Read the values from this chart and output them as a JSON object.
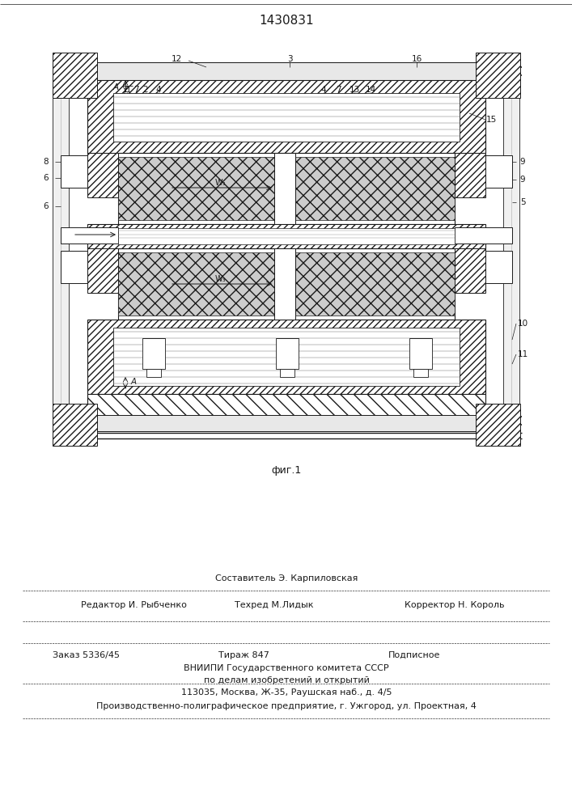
{
  "patent_number": "1430831",
  "fig_label": "фиг.1",
  "bg_color": "#ffffff",
  "line_color": "#1a1a1a",
  "editor_line": "Редактор И. Рыбченко",
  "tech_line": "Техред М.Лидык",
  "corrector_line": "Корректор Н. Король",
  "composer_line": "Составитель Э. Карпиловская",
  "order_line": "Заказ 5336/45",
  "tirazh_line": "Тираж 847",
  "podp_line": "Подписное",
  "vniip1": "ВНИИПИ Государственного комитета СССР",
  "vniip2": "по делам изобретений и открытий",
  "vniip3": "113035, Москва, Ж-35, Раушская наб., д. 4/5",
  "prod_line": "Производственно-полиграфическое предприятие, г. Ужгород, ул. Проектная, 4"
}
